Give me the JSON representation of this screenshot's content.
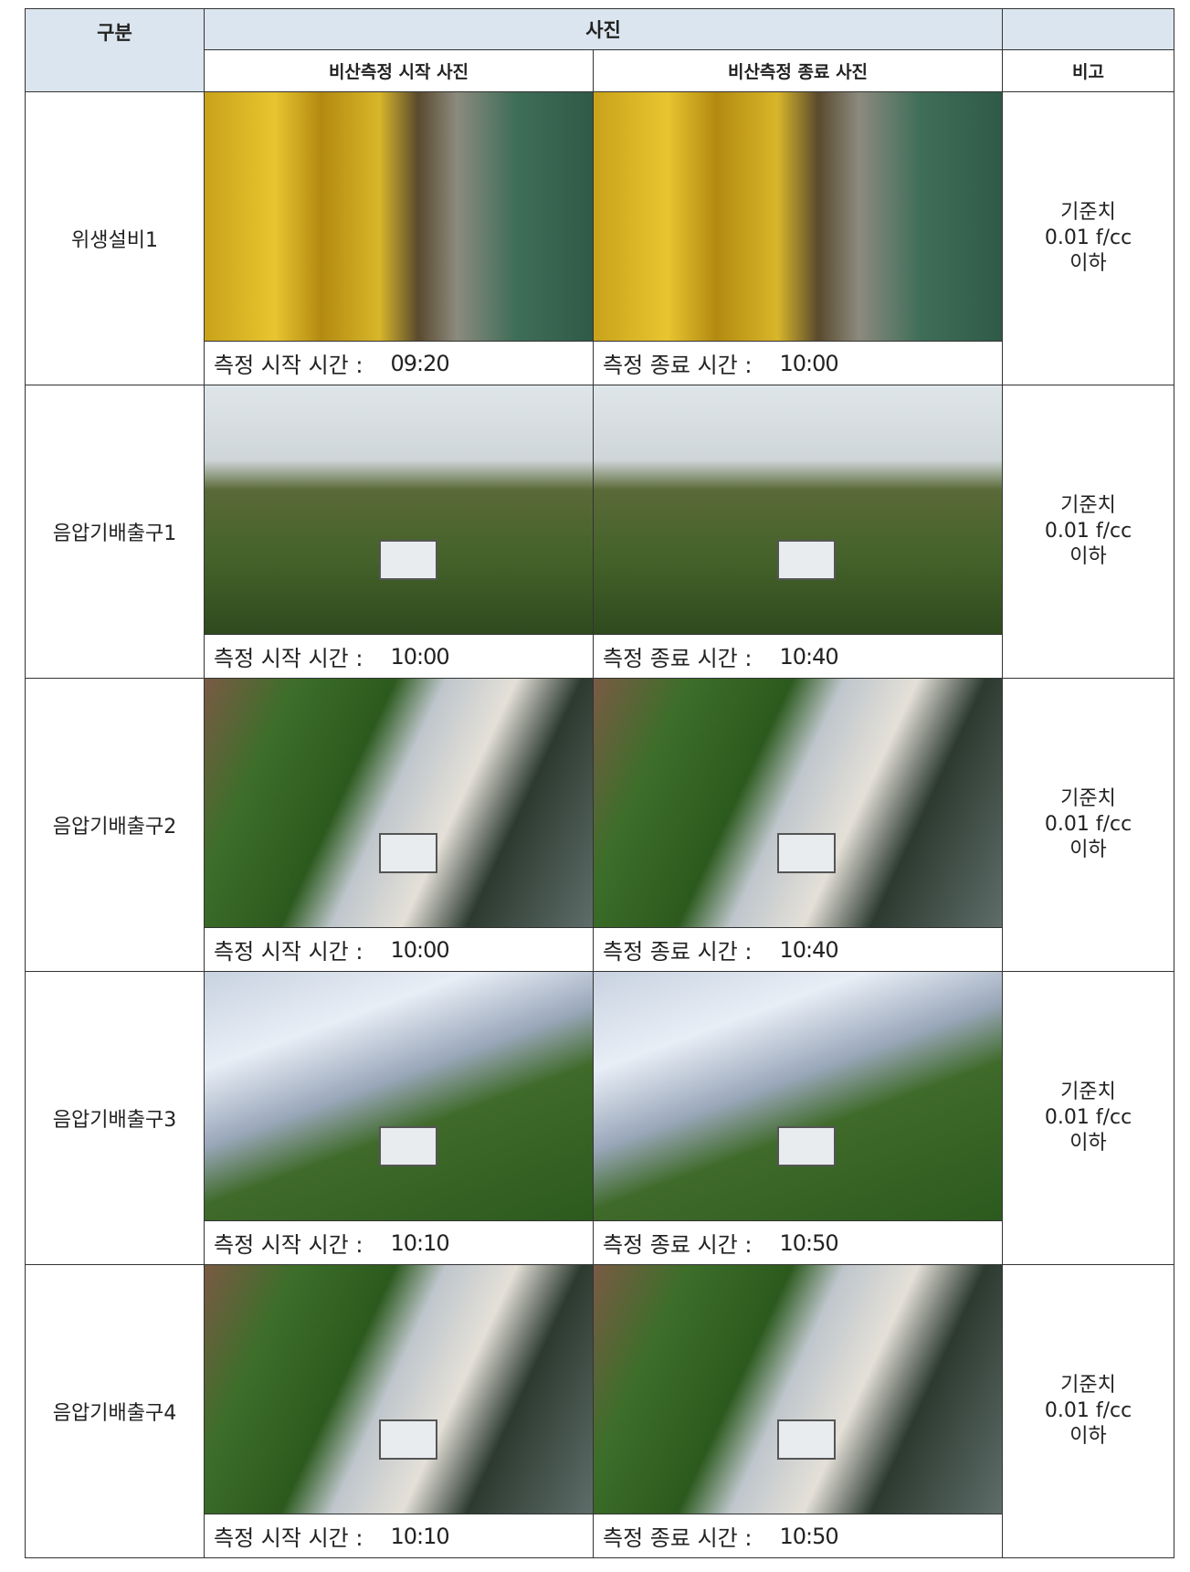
{
  "header": {
    "category": "구분",
    "photo": "사진",
    "start_photo": "비산측정 시작 사진",
    "end_photo": "비산측정 종료 사진",
    "remark": "비고"
  },
  "rows": [
    {
      "label": "위생설비1",
      "start_caption": "측정 시작 시간 :",
      "start_time": "09:20",
      "end_caption": "측정 종료 시간 :",
      "end_time": "10:00",
      "remark": [
        "기준치",
        "0.01 f/cc",
        "이하"
      ]
    },
    {
      "label": "음압기배출구1",
      "start_caption": "측정 시작 시간 :",
      "start_time": "10:00",
      "end_caption": "측정 종료 시간 :",
      "end_time": "10:40",
      "remark": [
        "기준치",
        "0.01 f/cc",
        "이하"
      ]
    },
    {
      "label": "음압기배출구2",
      "start_caption": "측정 시작 시간 :",
      "start_time": "10:00",
      "end_caption": "측정 종료 시간 :",
      "end_time": "10:40",
      "remark": [
        "기준치",
        "0.01 f/cc",
        "이하"
      ]
    },
    {
      "label": "음압기배출구3",
      "start_caption": "측정 시작 시간 :",
      "start_time": "10:10",
      "end_caption": "측정 종료 시간 :",
      "end_time": "10:50",
      "remark": [
        "기준치",
        "0.01 f/cc",
        "이하"
      ]
    },
    {
      "label": "음압기배출구4",
      "start_caption": "측정 시작 시간 :",
      "start_time": "10:10",
      "end_caption": "측정 종료 시간 :",
      "end_time": "10:50",
      "remark": [
        "기준치",
        "0.01 f/cc",
        "이하"
      ]
    }
  ]
}
